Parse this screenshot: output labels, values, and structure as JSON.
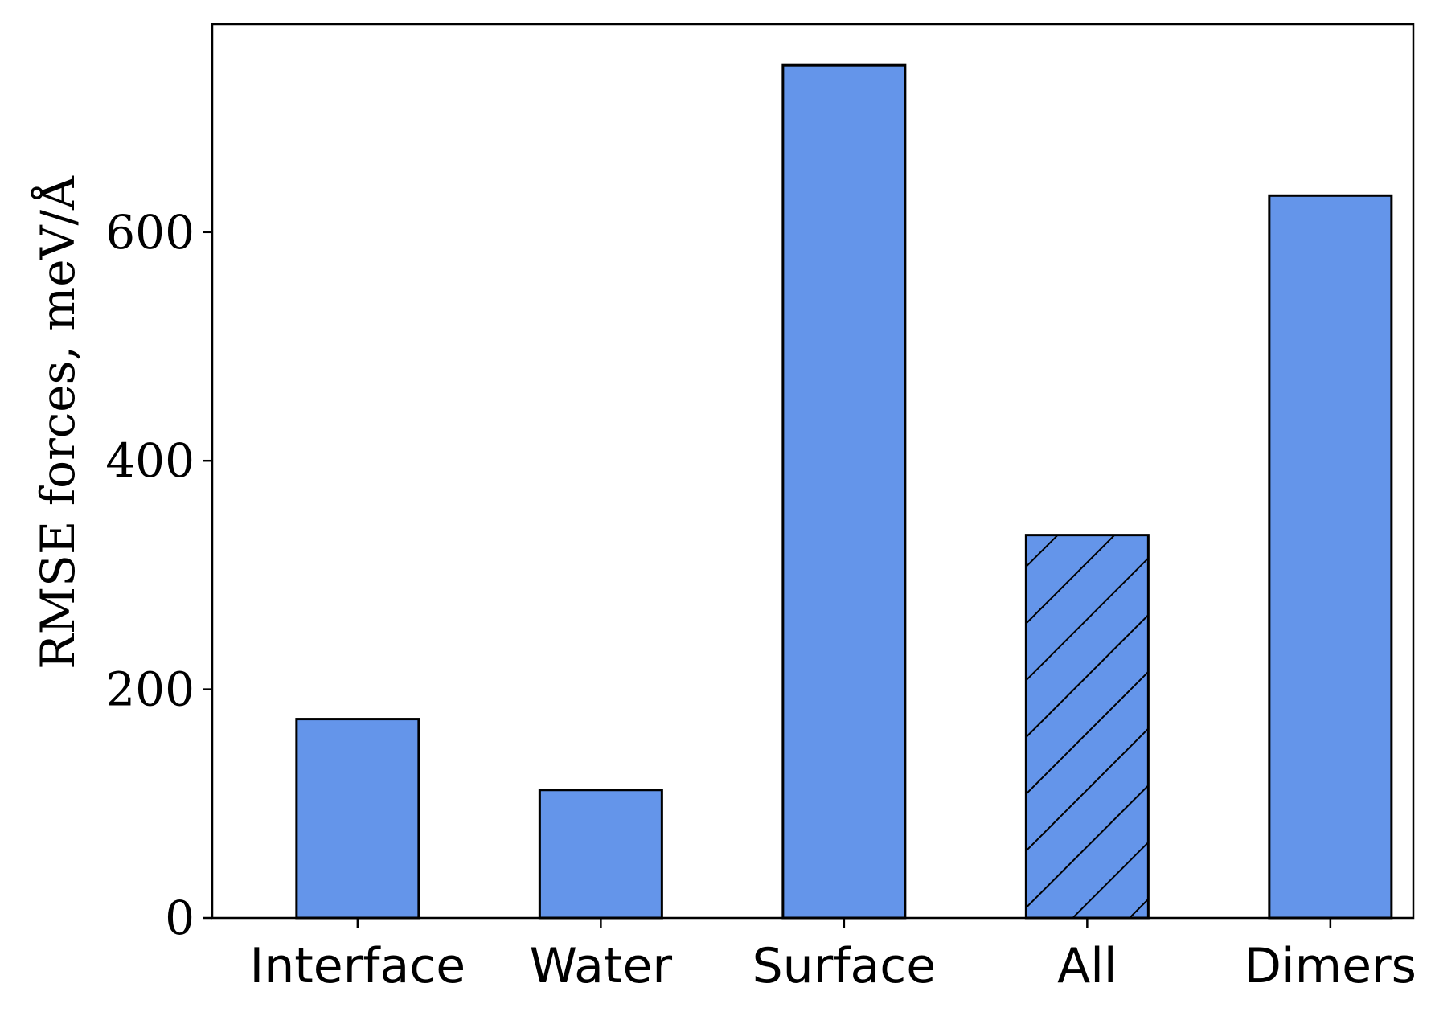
{
  "chart_data": {
    "type": "bar",
    "title": "",
    "xlabel": "",
    "ylabel": "RMSE forces,  meV/Å",
    "categories": [
      "Interface",
      "Water",
      "Surface",
      "All",
      "Dimers"
    ],
    "values": [
      174,
      112,
      746,
      335,
      632
    ],
    "hatched": [
      false,
      false,
      false,
      true,
      false
    ],
    "ylim": [
      0,
      782
    ],
    "yticks": [
      0,
      200,
      400,
      600
    ],
    "bar_color": "#6495ea",
    "edge_color": "#000000",
    "grid": false,
    "legend": "none"
  }
}
